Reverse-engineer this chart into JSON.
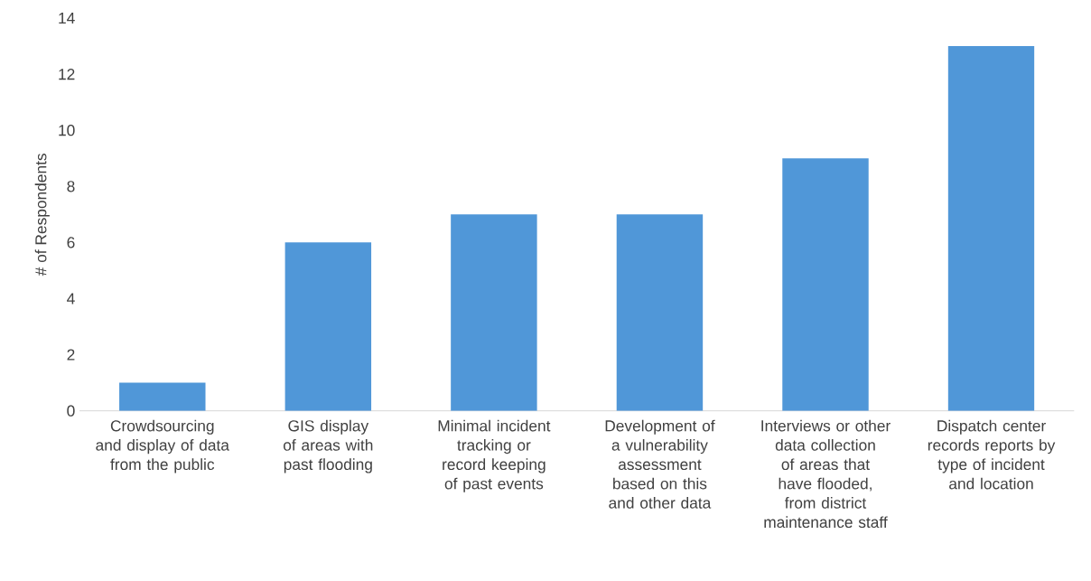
{
  "chart_data": {
    "type": "bar",
    "ylabel": "# of Respondents",
    "categories": [
      "Crowdsourcing and display of data from the public",
      "GIS display of areas with past flooding",
      "Minimal incident tracking or record keeping of past events",
      "Development of a vulnerability assessment based on this and other data",
      "Interviews or other data collection of areas that have flooded, from district maintenance staff",
      "Dispatch center records reports by type of incident and location"
    ],
    "values": [
      1,
      6,
      7,
      7,
      9,
      13
    ],
    "color": "#5097d8",
    "ylim": [
      0,
      14
    ],
    "yticks": [
      0,
      2,
      4,
      6,
      8,
      10,
      12,
      14
    ]
  }
}
